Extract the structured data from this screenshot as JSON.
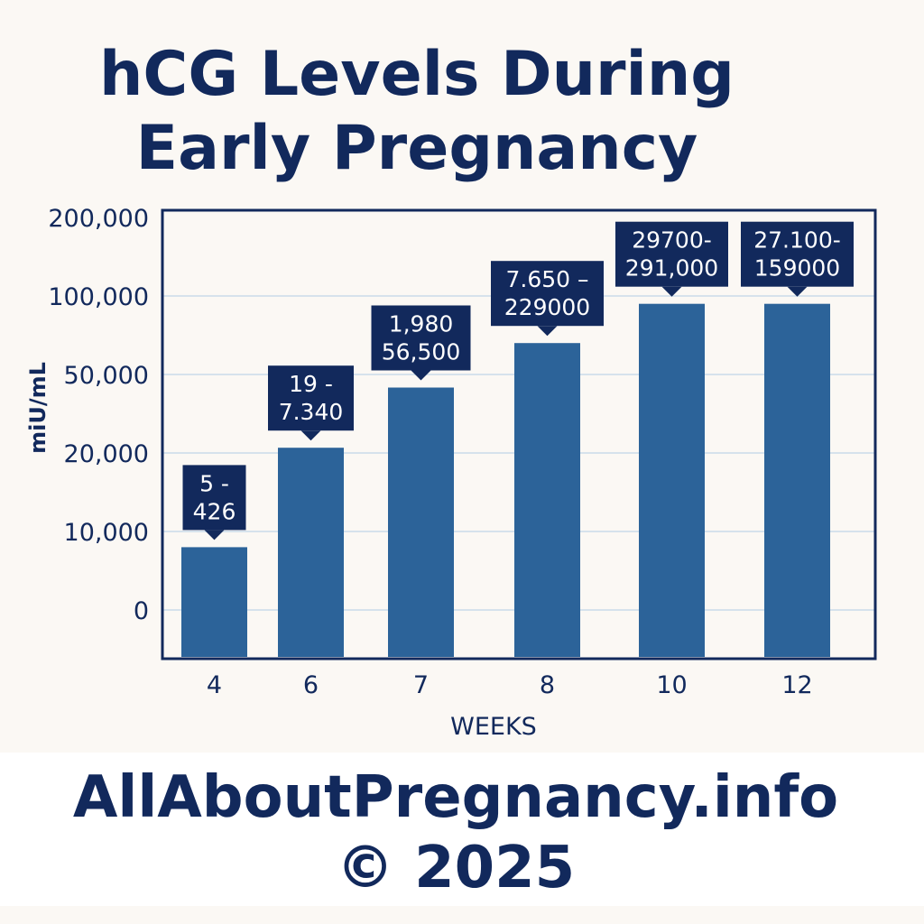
{
  "chart_data": {
    "type": "bar",
    "title_lines": [
      "hCG Levels During",
      "Early Pregnancy"
    ],
    "xlabel": "WEEKS",
    "ylabel": "miU/mL",
    "categories": [
      "4",
      "6",
      "7",
      "8",
      "10",
      "12"
    ],
    "y_ticks": [
      "200,000",
      "100,000",
      "50,000",
      "20,000",
      "10,000",
      "0"
    ],
    "y_tick_values": [
      200000,
      100000,
      50000,
      20000,
      10000,
      0
    ],
    "values": [
      8000,
      22000,
      45000,
      70000,
      95000,
      95000
    ],
    "data_labels": [
      [
        "5 -",
        "426"
      ],
      [
        "19 -",
        "7.340"
      ],
      [
        "1,980",
        "56,500"
      ],
      [
        "7.650 –",
        "229000"
      ],
      [
        "29700-",
        "291,000"
      ],
      [
        "27.100-",
        "159000"
      ]
    ],
    "grid": true,
    "legend": "none",
    "colors": {
      "bar": "#2c6399",
      "text": "#12295c",
      "label_bg": "#12295c",
      "grid": "#c9dbea"
    }
  },
  "footer": {
    "site": "AllAboutPregnancy.info",
    "copyright": "© 2025"
  }
}
